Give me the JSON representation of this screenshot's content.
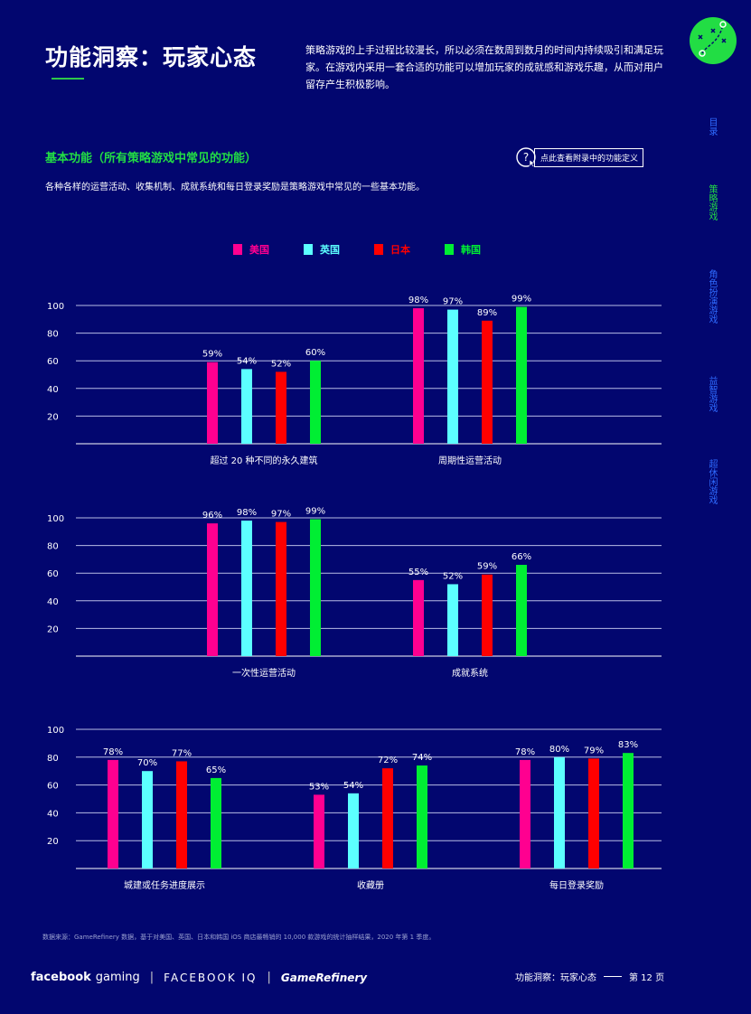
{
  "header": {
    "title": "功能洞察：玩家心态",
    "intro": "策略游戏的上手过程比较漫长，所以必须在数周到数月的时间内持续吸引和满足玩家。在游戏内采用一套合适的功能可以增加玩家的成就感和游戏乐趣，从而对用户留存产生积极影响。"
  },
  "section": {
    "title": "基本功能（所有策略游戏中常见的功能）",
    "description": "各种各样的运营活动、收集机制、成就系统和每日登录奖励是策略游戏中常见的一些基本功能。",
    "definition_button": "点此查看附录中的功能定义"
  },
  "sidenav": [
    {
      "label": "目录",
      "active": false
    },
    {
      "label": "策略游戏",
      "active": true
    },
    {
      "label": "角色扮演游戏",
      "active": false
    },
    {
      "label": "益智游戏",
      "active": false
    },
    {
      "label": "超休闲游戏",
      "active": false
    }
  ],
  "colors": {
    "background": "#02066f",
    "us": "#ff0090",
    "uk": "#5cffff",
    "jp": "#ff0000",
    "kr": "#00ee33",
    "accent_green": "#22dd44",
    "nav_blue": "#2f6bff"
  },
  "chart_data": {
    "type": "bar",
    "legend": [
      "美国",
      "英国",
      "日本",
      "韩国"
    ],
    "ylim": [
      0,
      100
    ],
    "yticks": [
      20,
      40,
      60,
      80,
      100
    ],
    "panels": [
      {
        "categories": [
          "超过 20 种不同的永久建筑",
          "周期性运营活动"
        ],
        "series": [
          {
            "name": "美国",
            "values": [
              59,
              98
            ]
          },
          {
            "name": "英国",
            "values": [
              54,
              97
            ]
          },
          {
            "name": "日本",
            "values": [
              52,
              89
            ]
          },
          {
            "name": "韩国",
            "values": [
              60,
              99
            ]
          }
        ]
      },
      {
        "categories": [
          "一次性运营活动",
          "成就系统"
        ],
        "series": [
          {
            "name": "美国",
            "values": [
              96,
              55
            ]
          },
          {
            "name": "英国",
            "values": [
              98,
              52
            ]
          },
          {
            "name": "日本",
            "values": [
              97,
              59
            ]
          },
          {
            "name": "韩国",
            "values": [
              99,
              66
            ]
          }
        ]
      },
      {
        "categories": [
          "城建或任务进度展示",
          "收藏册",
          "每日登录奖励"
        ],
        "series": [
          {
            "name": "美国",
            "values": [
              78,
              53,
              78
            ]
          },
          {
            "name": "英国",
            "values": [
              70,
              54,
              80
            ]
          },
          {
            "name": "日本",
            "values": [
              77,
              72,
              79
            ]
          },
          {
            "name": "韩国",
            "values": [
              65,
              74,
              83
            ]
          }
        ]
      }
    ]
  },
  "source": "数据来源：GameRefinery 数据，基于对美国、英国、日本和韩国 iOS 商店最畅销的 10,000 款游戏的统计抽样结果，2020 年第 1 季度。",
  "footer": {
    "brand_facebook": "facebook",
    "brand_gaming": "gaming",
    "brand_iq": "FACEBOOK IQ",
    "brand_gr": "GameRefinery",
    "page_label": "功能洞察：玩家心态",
    "page_number": "第 12 页"
  }
}
